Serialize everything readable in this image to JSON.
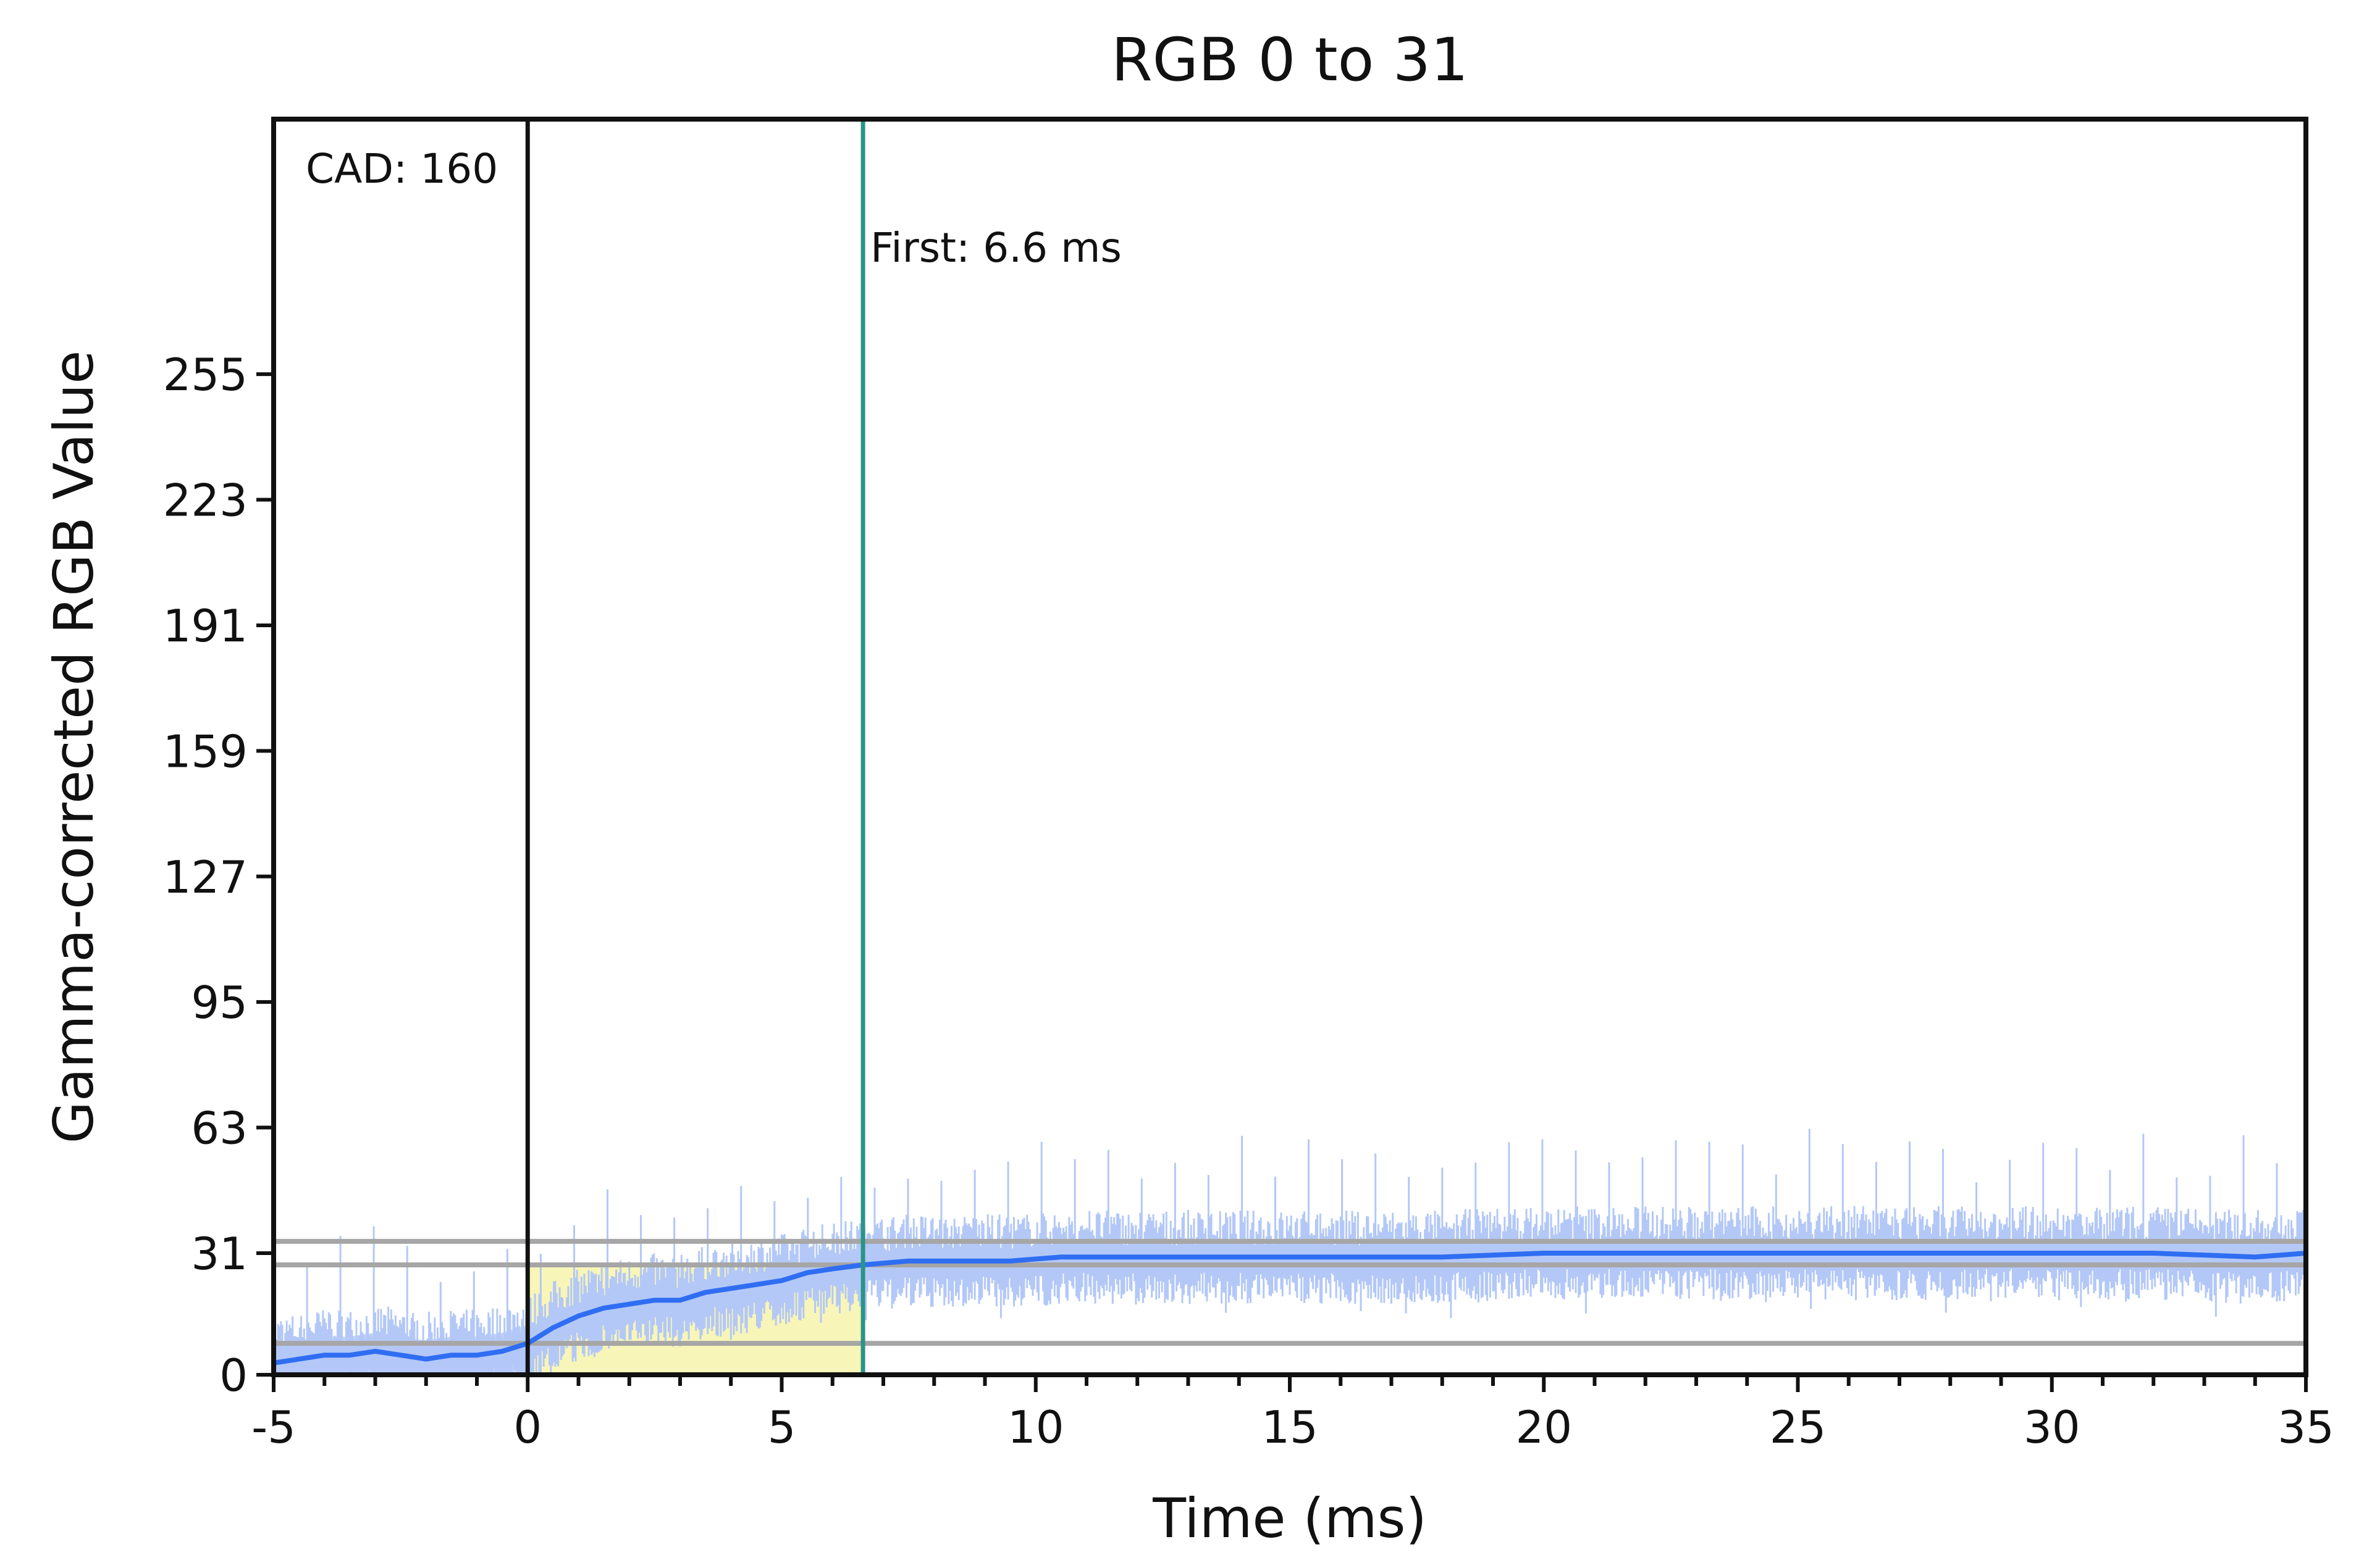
{
  "chart_data": {
    "type": "line",
    "title": "RGB 0 to 31",
    "xlabel": "Time (ms)",
    "ylabel": "Gamma-corrected RGB Value",
    "xlim": [
      -5,
      35
    ],
    "ylim": [
      0,
      320
    ],
    "xticks": [
      -5,
      0,
      5,
      10,
      15,
      20,
      25,
      30,
      35
    ],
    "yticks": [
      0,
      31,
      63,
      95,
      127,
      159,
      191,
      223,
      255
    ],
    "grid": false,
    "colors": {
      "smoothed_line": "#2f6ef2",
      "raw_signal": "#b3c8f7",
      "settle_band": "#a6a6a6",
      "transition_fill": "#f6f2a6",
      "input_marker": "#111111",
      "first_marker": "#2a9488"
    },
    "series": [
      {
        "values_x": [
          -5,
          -4.5,
          -4,
          -3.5,
          -3,
          -2.5,
          -2,
          -1.5,
          -1,
          -0.5,
          0,
          0.5,
          1,
          1.5,
          2,
          2.5,
          3,
          3.5,
          4,
          4.5,
          5,
          5.5,
          6,
          6.6,
          7.5,
          8.5,
          9.5,
          10.5,
          12,
          13.5,
          15,
          16.5,
          18,
          20,
          22,
          24,
          26,
          28,
          30,
          32,
          34,
          35
        ],
        "values_y": [
          3,
          4,
          5,
          5,
          6,
          5,
          4,
          5,
          5,
          6,
          8,
          12,
          15,
          17,
          18,
          19,
          19,
          21,
          22,
          23,
          24,
          26,
          27,
          28,
          29,
          29,
          29,
          30,
          30,
          30,
          30,
          30,
          30,
          31,
          31,
          31,
          31,
          31,
          31,
          31,
          30,
          31
        ]
      }
    ],
    "reference_lines": {
      "horizontal": [
        8,
        28,
        34
      ],
      "input_time": 0,
      "first_response_time": 6.6
    },
    "transition_region": {
      "x_start": 0,
      "x_end": 6.6,
      "y_top": 28
    },
    "annotations": {
      "cad": "CAD: 160",
      "first": "First: 6.6 ms"
    }
  }
}
